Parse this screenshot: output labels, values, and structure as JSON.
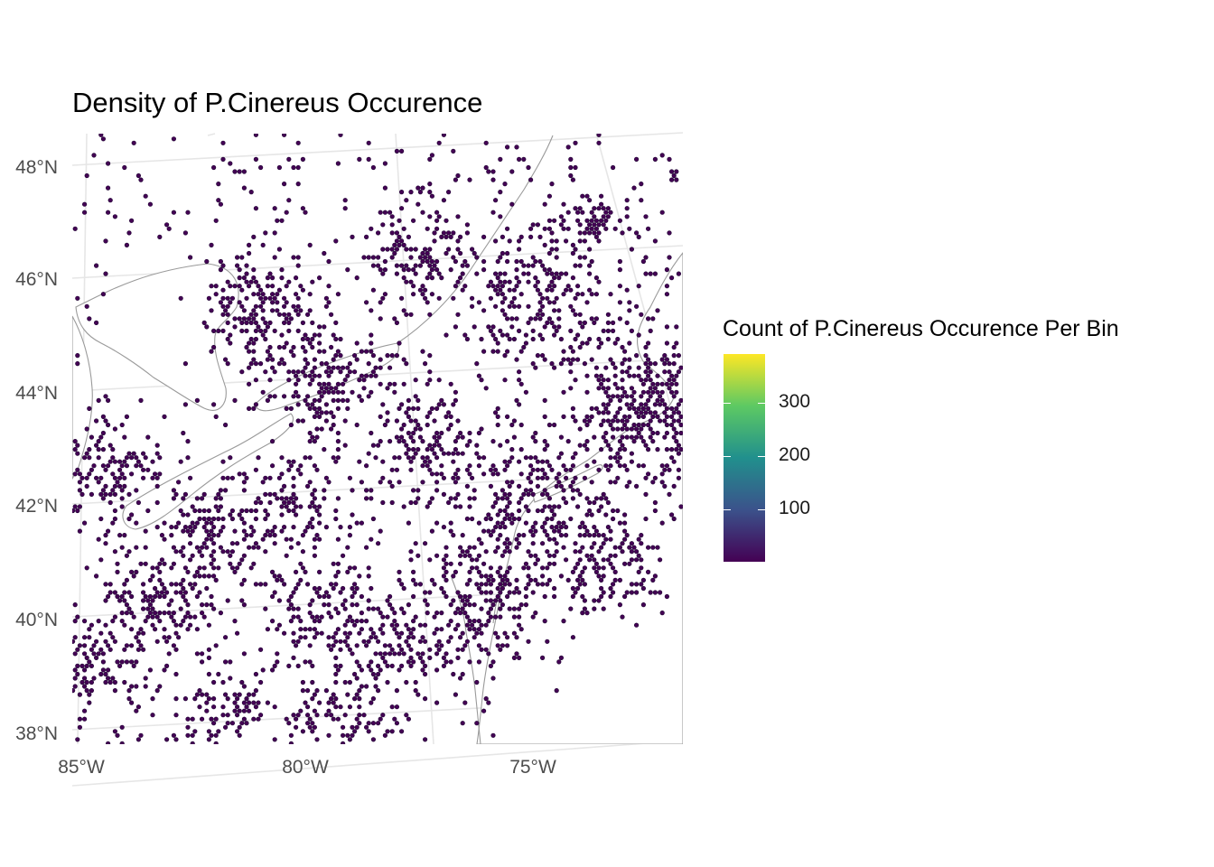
{
  "title": "Density of P.Cinereus Occurence",
  "axes": {
    "y_ticks": [
      "48°N",
      "46°N",
      "44°N",
      "42°N",
      "40°N",
      "38°N"
    ],
    "x_ticks": [
      "85°W",
      "80°W",
      "75°W"
    ]
  },
  "legend": {
    "title": "Count of P.Cinereus Occurence Per Bin",
    "ticks": [
      "300",
      "200",
      "100"
    ],
    "palette": [
      "#440154",
      "#3b528b",
      "#21908d",
      "#5dc963",
      "#fde725"
    ],
    "range": [
      1,
      385
    ]
  },
  "colors": {
    "bin_fill": "#440154",
    "bin_stroke": "#1c0330",
    "coast": "#9a9a9a",
    "grid": "#e6e6e6"
  },
  "chart_data": {
    "type": "heatmap",
    "title": "Density of P.Cinereus Occurence",
    "xlabel": "",
    "ylabel": "",
    "xlim": [
      -85.2,
      -72.3
    ],
    "ylim": [
      37.8,
      48.6
    ],
    "x_ticks": [
      "85°W",
      "80°W",
      "75°W"
    ],
    "y_ticks": [
      "48°N",
      "46°N",
      "44°N",
      "42°N",
      "40°N",
      "38°N"
    ],
    "legend_title": "Count of P.Cinereus Occurence Per Bin",
    "legend_placement": "right",
    "grid": true,
    "color_scale": "viridis",
    "clusters": [
      {
        "lon": -73.2,
        "lat": 44.0,
        "weight": 1.0
      },
      {
        "lon": -75.6,
        "lat": 42.0,
        "weight": 0.9
      },
      {
        "lon": -76.6,
        "lat": 40.3,
        "weight": 0.7
      },
      {
        "lon": -72.5,
        "lat": 43.3,
        "weight": 0.7
      },
      {
        "lon": -75.5,
        "lat": 45.8,
        "weight": 0.6
      },
      {
        "lon": -79.8,
        "lat": 44.3,
        "weight": 0.6
      },
      {
        "lon": -81.4,
        "lat": 45.5,
        "weight": 0.5
      },
      {
        "lon": -82.3,
        "lat": 41.6,
        "weight": 0.5
      },
      {
        "lon": -84.6,
        "lat": 39.3,
        "weight": 0.4
      },
      {
        "lon": -84.4,
        "lat": 42.6,
        "weight": 0.4
      },
      {
        "lon": -83.2,
        "lat": 40.3,
        "weight": 0.4
      },
      {
        "lon": -80.0,
        "lat": 40.2,
        "weight": 0.4
      },
      {
        "lon": -77.8,
        "lat": 43.2,
        "weight": 0.4
      },
      {
        "lon": -78.5,
        "lat": 39.5,
        "weight": 0.35
      },
      {
        "lon": -78.0,
        "lat": 46.4,
        "weight": 0.35
      },
      {
        "lon": -74.0,
        "lat": 41.0,
        "weight": 0.5
      },
      {
        "lon": -79.5,
        "lat": 38.2,
        "weight": 0.3
      },
      {
        "lon": -82.0,
        "lat": 38.5,
        "weight": 0.25
      },
      {
        "lon": -80.5,
        "lat": 42.0,
        "weight": 0.35
      },
      {
        "lon": -74.3,
        "lat": 47.0,
        "weight": 0.25
      }
    ]
  }
}
